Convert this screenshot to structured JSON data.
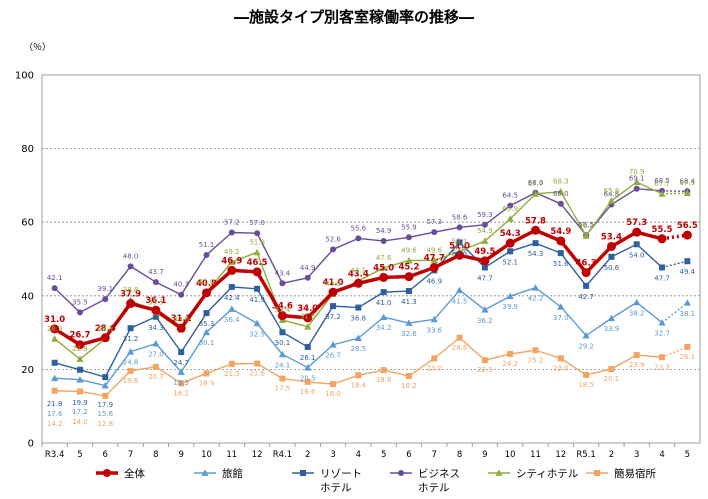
{
  "chart_data": {
    "type": "line",
    "title": "―施設タイプ別客室稼働率の推移―",
    "ylabel": "（％）",
    "xlabel": "",
    "ylim": [
      0,
      100
    ],
    "yticks": [
      0,
      20,
      40,
      60,
      80,
      100
    ],
    "grid": "horizontal dotted",
    "legend_position": "bottom",
    "categories": [
      "R3.4",
      "5",
      "6",
      "7",
      "8",
      "9",
      "10",
      "11",
      "12",
      "R4.1",
      "2",
      "3",
      "4",
      "5",
      "6",
      "7",
      "8",
      "9",
      "10",
      "11",
      "12",
      "R5.1",
      "2",
      "3",
      "4",
      "5"
    ],
    "series": [
      {
        "name": "全体",
        "color": "#c00000",
        "marker": "circle",
        "last_dotted": true,
        "values": [
          31.0,
          26.7,
          28.6,
          37.9,
          36.1,
          31.2,
          40.8,
          46.9,
          46.5,
          34.6,
          34.0,
          41.0,
          43.4,
          45.0,
          45.2,
          47.7,
          51.0,
          49.5,
          54.3,
          57.8,
          54.9,
          46.3,
          53.4,
          57.3,
          55.5,
          56.5
        ]
      },
      {
        "name": "旅館",
        "color": "#5b9bd5",
        "marker": "triangle",
        "last_dotted": true,
        "values": [
          17.6,
          17.2,
          15.6,
          24.8,
          27.0,
          19.3,
          30.1,
          36.4,
          32.5,
          24.1,
          20.5,
          26.7,
          28.5,
          34.2,
          32.6,
          33.6,
          41.5,
          36.2,
          39.9,
          42.2,
          37.0,
          29.2,
          33.9,
          38.2,
          32.7,
          38.1
        ]
      },
      {
        "name": "リゾートホテル",
        "color": "#2e5f9e",
        "marker": "square",
        "last_dotted": true,
        "values": [
          21.8,
          19.9,
          17.9,
          31.2,
          34.3,
          24.7,
          35.3,
          42.4,
          41.9,
          30.1,
          26.1,
          37.2,
          36.8,
          41.0,
          41.3,
          46.9,
          54.5,
          47.7,
          52.1,
          54.3,
          51.6,
          42.7,
          50.6,
          54.0,
          47.7,
          49.4
        ]
      },
      {
        "name": "ビジネスホテル",
        "color": "#6b4c9a",
        "marker": "circle",
        "last_dotted": true,
        "values": [
          42.1,
          35.5,
          39.1,
          48.0,
          43.7,
          40.3,
          51.1,
          57.2,
          57.0,
          43.4,
          44.9,
          52.6,
          55.6,
          54.9,
          55.9,
          57.3,
          58.6,
          59.3,
          64.5,
          68.0,
          65.0,
          56.5,
          64.8,
          69.1,
          68.5,
          68.4
        ]
      },
      {
        "name": "シティホテル",
        "color": "#8fae3c",
        "marker": "triangle",
        "last_dotted": true,
        "values": [
          28.3,
          22.8,
          28.3,
          38.8,
          35.5,
          30.8,
          41.0,
          49.2,
          51.8,
          33.4,
          31.6,
          40.5,
          44.1,
          47.6,
          49.6,
          49.6,
          52.1,
          54.9,
          60.9,
          67.7,
          68.3,
          56.3,
          65.8,
          70.9,
          67.7,
          67.9
        ]
      },
      {
        "name": "簡易宿所",
        "color": "#f4a460",
        "marker": "square",
        "last_dotted": true,
        "values": [
          14.2,
          14.0,
          12.8,
          19.6,
          20.7,
          16.2,
          18.9,
          21.5,
          21.6,
          17.5,
          16.6,
          16.0,
          18.4,
          19.8,
          18.2,
          23.0,
          28.6,
          22.5,
          24.2,
          25.2,
          23.0,
          18.5,
          20.1,
          23.9,
          23.3,
          26.1
        ]
      }
    ],
    "legend_items": [
      {
        "label": "全体",
        "color": "#c00000",
        "marker": "circle"
      },
      {
        "label": "旅館",
        "color": "#5b9bd5",
        "marker": "triangle"
      },
      {
        "label": "リゾート\nホテル",
        "color": "#2e5f9e",
        "marker": "square"
      },
      {
        "label": "ビジネス\nホテル",
        "color": "#6b4c9a",
        "marker": "circle"
      },
      {
        "label": "シティホテル",
        "color": "#8fae3c",
        "marker": "triangle"
      },
      {
        "label": "簡易宿所",
        "color": "#f4a460",
        "marker": "square"
      }
    ]
  }
}
